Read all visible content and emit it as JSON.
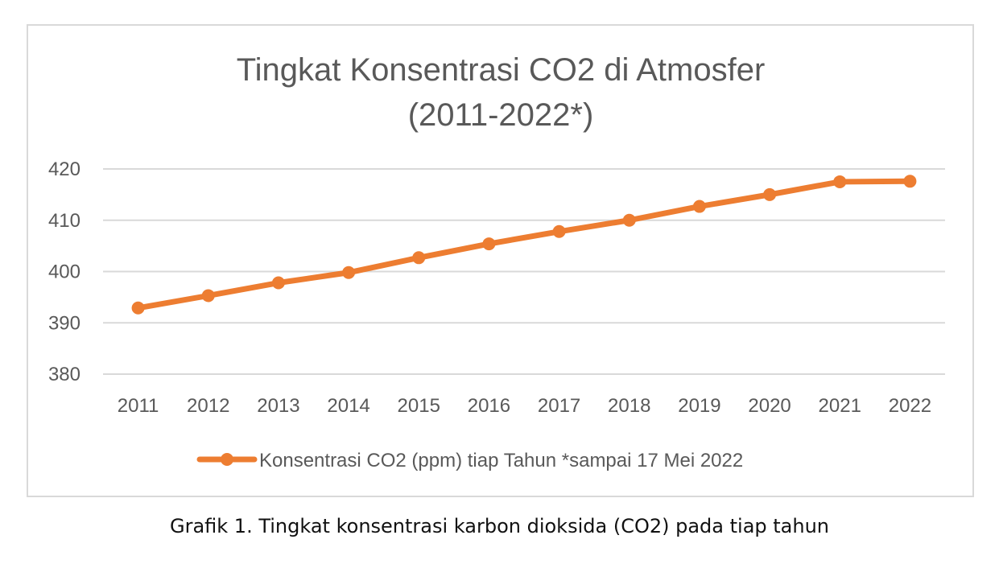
{
  "chart_data": {
    "type": "line",
    "title_line1": "Tingkat Konsentrasi CO2 di Atmosfer",
    "title_line2": "(2011-2022*)",
    "categories": [
      "2011",
      "2012",
      "2013",
      "2014",
      "2015",
      "2016",
      "2017",
      "2018",
      "2019",
      "2020",
      "2021",
      "2022"
    ],
    "series": [
      {
        "name": "Konsentrasi CO2 (ppm) tiap Tahun *sampai 17 Mei 2022",
        "values": [
          392.9,
          395.3,
          397.8,
          399.8,
          402.7,
          405.4,
          407.8,
          410.0,
          412.7,
          415.0,
          417.5,
          417.6
        ],
        "color": "#ed7d31"
      }
    ],
    "yticks": [
      "380",
      "390",
      "400",
      "410",
      "420"
    ],
    "ylim": [
      380,
      420
    ],
    "grid": true,
    "legend_position": "bottom"
  },
  "caption": "Grafik 1. Tingkat konsentrasi karbon dioksida (CO2) pada tiap tahun",
  "colors": {
    "line": "#ed7d31",
    "grid": "#d9d9d9",
    "text": "#595959"
  }
}
